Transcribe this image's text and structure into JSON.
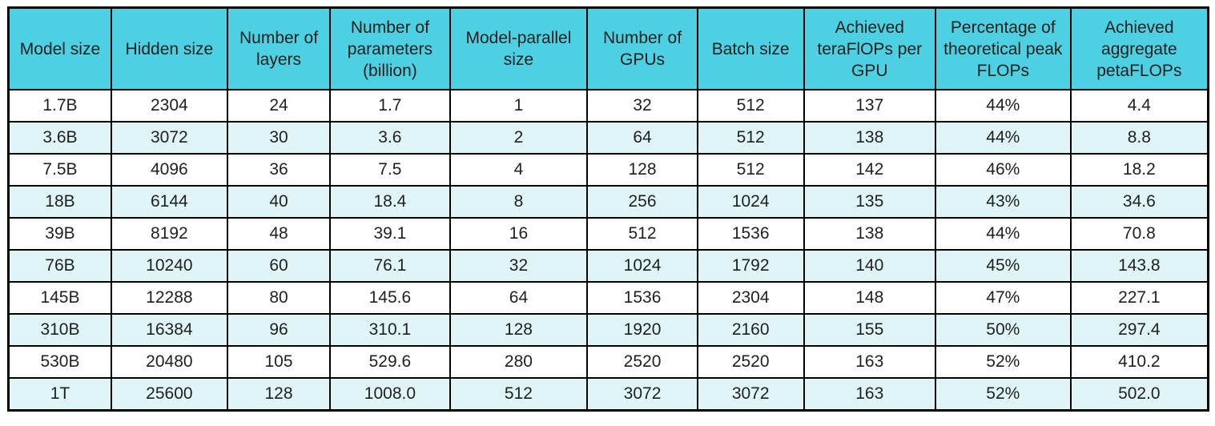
{
  "colors": {
    "header_bg": "#4dd0e1",
    "row_even_bg": "#e0f5f8",
    "row_odd_bg": "#ffffff",
    "border": "#000000",
    "text": "#1f1f1f",
    "page_bg": "#ffffff"
  },
  "chart_data": {
    "type": "table",
    "columns": [
      "Model size",
      "Hidden size",
      "Number of layers",
      "Number of parameters (billion)",
      "Model-parallel size",
      "Number of GPUs",
      "Batch size",
      "Achieved teraFlOPs per GPU",
      "Percentage of theoretical peak FLOPs",
      "Achieved aggregate petaFLOPs"
    ],
    "rows": [
      [
        "1.7B",
        "2304",
        "24",
        "1.7",
        "1",
        "32",
        "512",
        "137",
        "44%",
        "4.4"
      ],
      [
        "3.6B",
        "3072",
        "30",
        "3.6",
        "2",
        "64",
        "512",
        "138",
        "44%",
        "8.8"
      ],
      [
        "7.5B",
        "4096",
        "36",
        "7.5",
        "4",
        "128",
        "512",
        "142",
        "46%",
        "18.2"
      ],
      [
        "18B",
        "6144",
        "40",
        "18.4",
        "8",
        "256",
        "1024",
        "135",
        "43%",
        "34.6"
      ],
      [
        "39B",
        "8192",
        "48",
        "39.1",
        "16",
        "512",
        "1536",
        "138",
        "44%",
        "70.8"
      ],
      [
        "76B",
        "10240",
        "60",
        "76.1",
        "32",
        "1024",
        "1792",
        "140",
        "45%",
        "143.8"
      ],
      [
        "145B",
        "12288",
        "80",
        "145.6",
        "64",
        "1536",
        "2304",
        "148",
        "47%",
        "227.1"
      ],
      [
        "310B",
        "16384",
        "96",
        "310.1",
        "128",
        "1920",
        "2160",
        "155",
        "50%",
        "297.4"
      ],
      [
        "530B",
        "20480",
        "105",
        "529.6",
        "280",
        "2520",
        "2520",
        "163",
        "52%",
        "410.2"
      ],
      [
        "1T",
        "25600",
        "128",
        "1008.0",
        "512",
        "3072",
        "3072",
        "163",
        "52%",
        "502.0"
      ]
    ]
  }
}
